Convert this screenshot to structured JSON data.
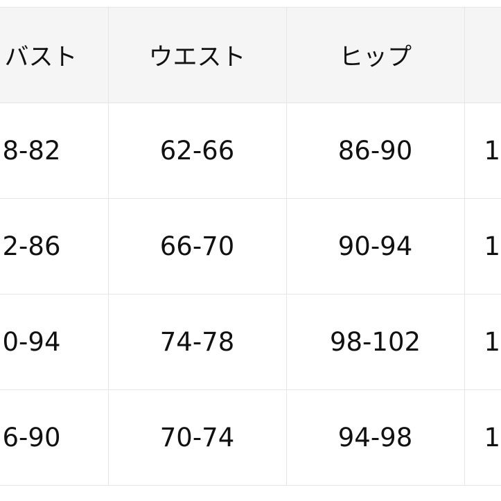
{
  "table": {
    "headers": [
      "バスト",
      "ウエスト",
      "ヒップ",
      ""
    ],
    "rows": [
      [
        "8-82",
        "62-66",
        "86-90",
        "1"
      ],
      [
        "2-86",
        "66-70",
        "90-94",
        "1"
      ],
      [
        "0-94",
        "74-78",
        "98-102",
        "1"
      ],
      [
        "6-90",
        "70-74",
        "94-98",
        "1"
      ]
    ]
  }
}
